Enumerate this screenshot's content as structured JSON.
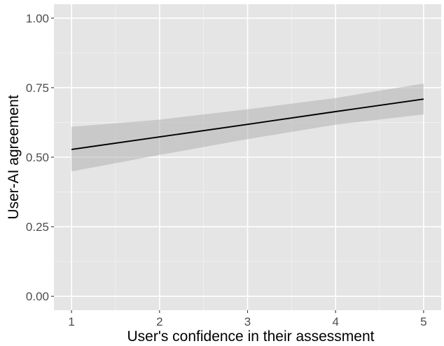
{
  "chart_data": {
    "type": "line",
    "title": "",
    "xlabel": "User's confidence in their assessment",
    "ylabel": "User-AI agreement",
    "xlim": [
      0.8,
      5.2
    ],
    "ylim": [
      -0.05,
      1.05
    ],
    "x_ticks": [
      1,
      2,
      3,
      4,
      5
    ],
    "x_tick_labels": [
      "1",
      "2",
      "3",
      "4",
      "5"
    ],
    "y_ticks": [
      0.0,
      0.25,
      0.5,
      0.75,
      1.0
    ],
    "y_tick_labels": [
      "0.00",
      "0.25",
      "0.50",
      "0.75",
      "1.00"
    ],
    "grid": true,
    "series": [
      {
        "x": [
          1,
          2,
          3,
          4,
          5
        ],
        "y": [
          0.528,
          0.573,
          0.618,
          0.664,
          0.709
        ],
        "ci_lower": [
          0.449,
          0.508,
          0.565,
          0.617,
          0.654
        ],
        "ci_upper": [
          0.609,
          0.635,
          0.672,
          0.713,
          0.765
        ],
        "color": "#000000",
        "band_color": "#b3b3b3"
      }
    ],
    "colors": {
      "panel_background": "#e5e5e5",
      "grid_major": "#ffffff",
      "tick_text": "#4d4d4d"
    }
  }
}
